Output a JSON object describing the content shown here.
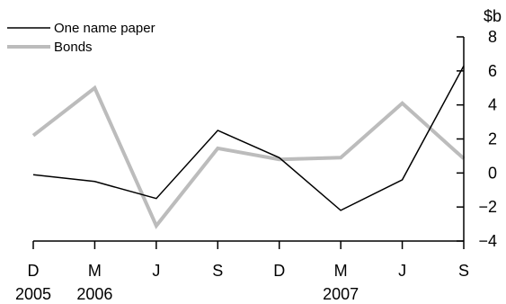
{
  "chart_data": {
    "type": "line",
    "title": "",
    "xlabel": "",
    "ylabel": "",
    "unit": "$b",
    "categories": [
      "D 2005",
      "M 2006",
      "J 2006",
      "S 2006",
      "D 2006",
      "M 2007",
      "J 2007",
      "S 2007"
    ],
    "x_ticks": [
      {
        "month": "D",
        "year": "2005"
      },
      {
        "month": "M",
        "year": "2006"
      },
      {
        "month": "J",
        "year": ""
      },
      {
        "month": "S",
        "year": ""
      },
      {
        "month": "D",
        "year": ""
      },
      {
        "month": "M",
        "year": "2007"
      },
      {
        "month": "J",
        "year": ""
      },
      {
        "month": "S",
        "year": ""
      }
    ],
    "y_ticks": [
      8,
      6,
      4,
      2,
      0,
      -2,
      -4
    ],
    "y_tick_labels": [
      "8",
      "6",
      "4",
      "2",
      "0",
      "−2",
      "−4"
    ],
    "ylim": [
      -4,
      8
    ],
    "y_axis_side": "right",
    "grid": false,
    "legend_position": "top-left",
    "series": [
      {
        "name": "One name paper",
        "color": "#000000",
        "values": [
          -0.1,
          -0.5,
          -1.5,
          2.5,
          0.9,
          -2.2,
          -0.4,
          6.3
        ]
      },
      {
        "name": "Bonds",
        "color": "#bcbcbc",
        "values": [
          2.2,
          5.0,
          -3.1,
          1.45,
          0.8,
          0.9,
          4.1,
          0.85
        ]
      }
    ]
  }
}
